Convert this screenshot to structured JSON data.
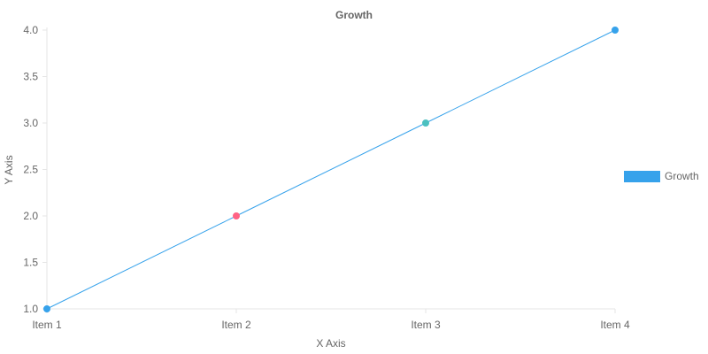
{
  "chart_data": {
    "type": "line",
    "title": "Growth",
    "xlabel": "X Axis",
    "ylabel": "Y Axis",
    "categories": [
      "Item 1",
      "Item 2",
      "Item 3",
      "Item 4"
    ],
    "ylim": [
      1.0,
      4.0
    ],
    "yticks": [
      "1.0",
      "1.5",
      "2.0",
      "2.5",
      "3.0",
      "3.5",
      "4.0"
    ],
    "grid": false,
    "legend_position": "right",
    "series": [
      {
        "name": "Growth",
        "values": [
          1,
          2,
          3,
          4
        ],
        "color": "#36a2eb",
        "point_colors": [
          "#36a2eb",
          "#ff6384",
          "#4bc0c0",
          "#36a2eb"
        ]
      }
    ]
  },
  "colors": {
    "axis": "#e5e5e5",
    "text": "#666666"
  }
}
